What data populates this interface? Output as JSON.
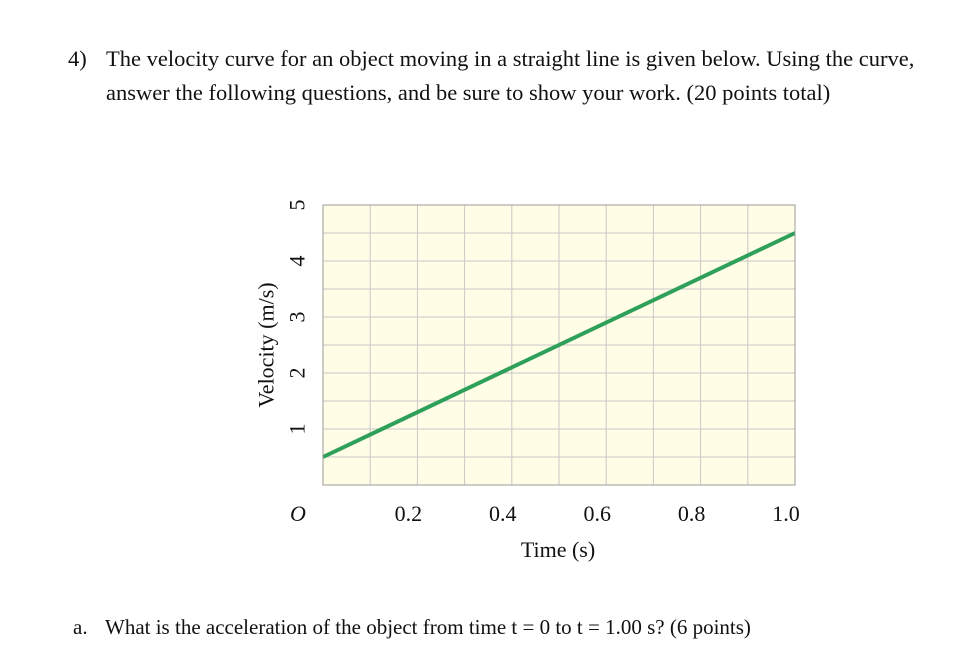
{
  "question": {
    "number": "4)",
    "text": "The velocity curve for an object moving in a straight line is given below. Using the curve, answer the following questions, and be sure to show your work. (20 points total)"
  },
  "chart_data": {
    "type": "line",
    "xlabel": "Time (s)",
    "ylabel": "Velocity (m/s)",
    "xlim": [
      0,
      1.0
    ],
    "ylim": [
      0,
      5
    ],
    "x_ticks": [
      "0.2",
      "0.4",
      "0.6",
      "0.8",
      "1.0"
    ],
    "y_ticks": [
      "1",
      "2",
      "3",
      "4",
      "5"
    ],
    "origin_label": "O",
    "grid": true,
    "background_color": "#fffde6",
    "grid_color": "#c8c8c8",
    "line_color": "#2ea05a",
    "series": [
      {
        "x": [
          0,
          1.0
        ],
        "y": [
          0.5,
          4.5
        ]
      }
    ]
  },
  "part_a": {
    "label": "a.",
    "text": "What is the acceleration of the object from time t = 0 to t = 1.00 s? (6 points)"
  }
}
